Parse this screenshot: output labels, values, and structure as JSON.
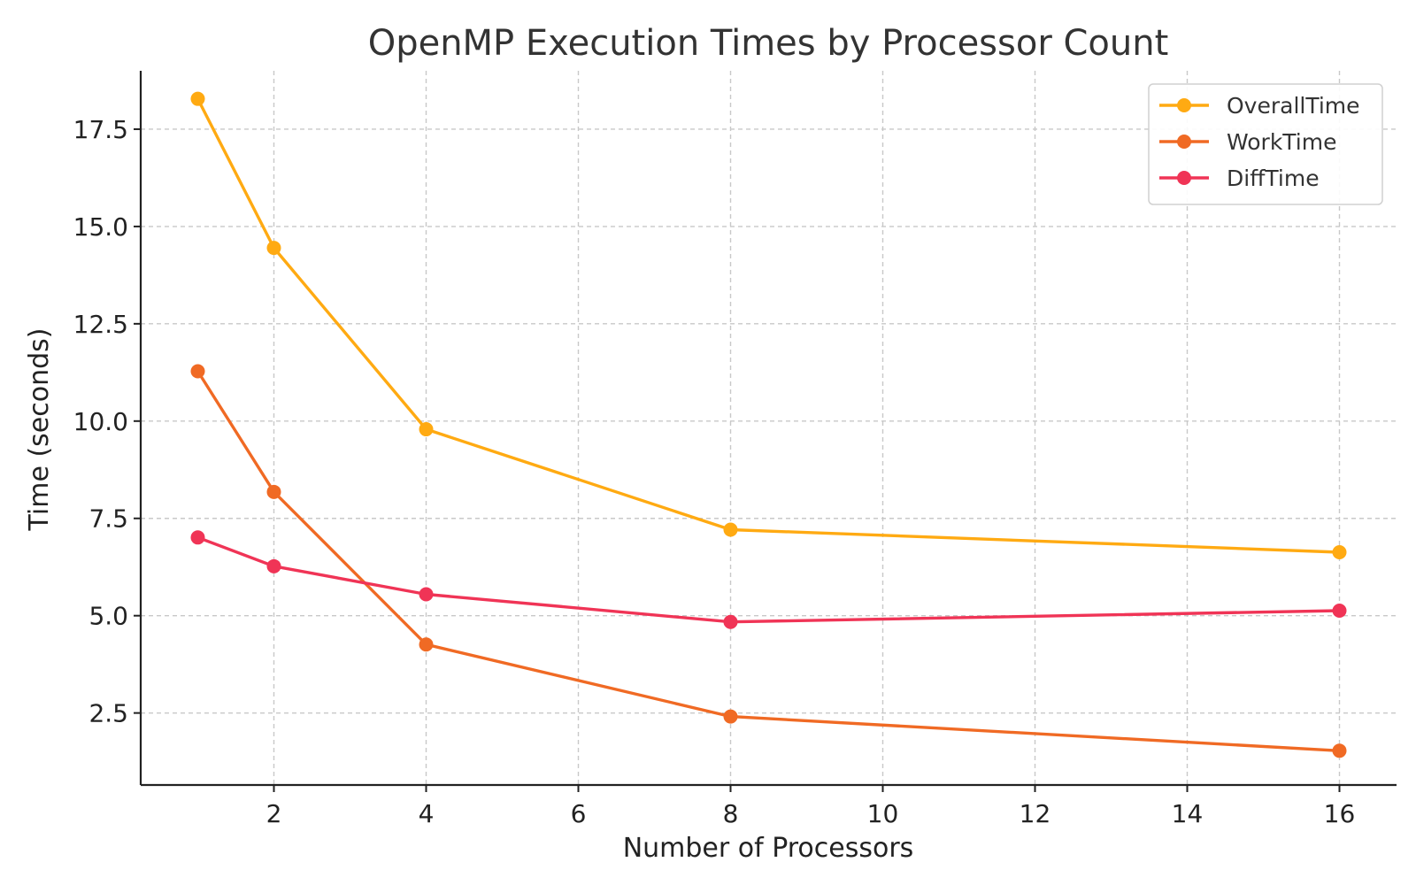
{
  "chart_data": {
    "type": "line",
    "title": "OpenMP Execution Times by Processor Count",
    "xlabel": "Number of Processors",
    "ylabel": "Time (seconds)",
    "x": [
      1,
      2,
      4,
      8,
      16
    ],
    "xlim": [
      0.25,
      16.75
    ],
    "ylim": [
      0.65,
      19.0
    ],
    "xticks": [
      2,
      4,
      6,
      8,
      10,
      12,
      14,
      16
    ],
    "xtick_labels": [
      "2",
      "4",
      "6",
      "8",
      "10",
      "12",
      "14",
      "16"
    ],
    "yticks": [
      2.5,
      5.0,
      7.5,
      10.0,
      12.5,
      15.0,
      17.5
    ],
    "ytick_labels": [
      "2.5",
      "5.0",
      "7.5",
      "10.0",
      "12.5",
      "15.0",
      "17.5"
    ],
    "grid": true,
    "legend_position": "top-right",
    "series": [
      {
        "name": "OverallTime",
        "color": "#FFAA12",
        "values": [
          18.28,
          14.45,
          9.79,
          7.21,
          6.63
        ]
      },
      {
        "name": "WorkTime",
        "color": "#F06A24",
        "values": [
          11.28,
          8.18,
          4.26,
          2.41,
          1.53
        ]
      },
      {
        "name": "DiffTime",
        "color": "#F03456",
        "values": [
          7.01,
          6.27,
          5.55,
          4.84,
          5.13
        ]
      }
    ]
  }
}
